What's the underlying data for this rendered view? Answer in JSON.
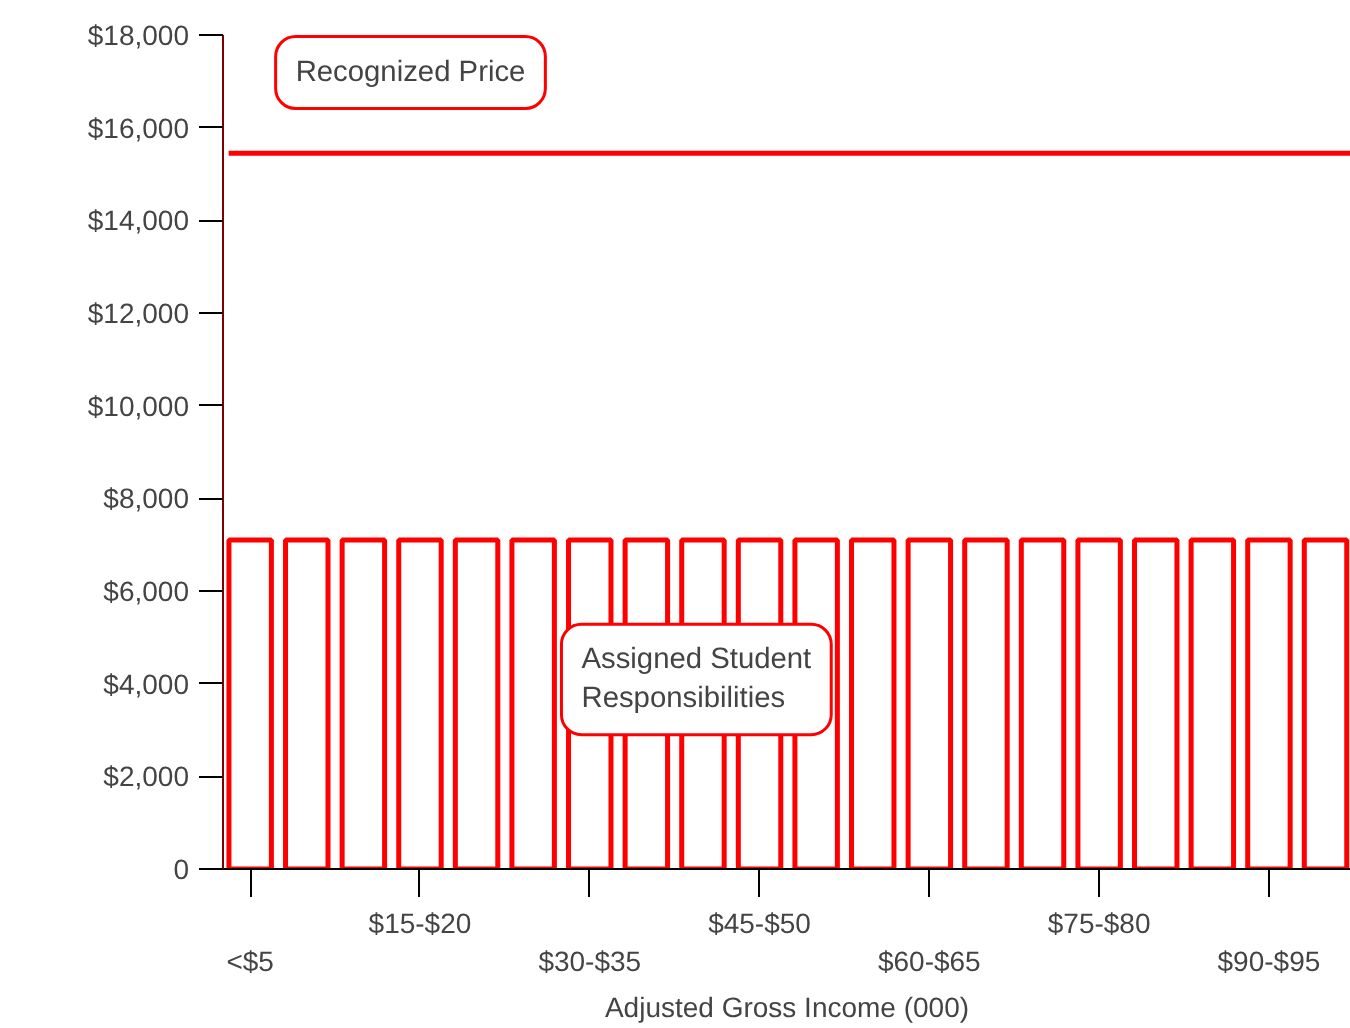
{
  "chart_data": {
    "type": "bar",
    "xlabel": "Adjusted Gross Income (000)",
    "categories": [
      "<$5",
      null,
      null,
      "$15-$20",
      null,
      null,
      "$30-$35",
      null,
      null,
      "$45-$50",
      null,
      null,
      "$60-$65",
      null,
      null,
      "$75-$80",
      null,
      null,
      "$90-$95",
      null
    ],
    "series": [
      {
        "color": "#ff0000",
        "values": [
          7100,
          7100,
          7100,
          7100,
          7100,
          7100,
          7100,
          7100,
          7100,
          7100,
          7100,
          7100,
          7100,
          7100,
          7100,
          7100,
          7100,
          7100,
          7100,
          7100
        ]
      }
    ],
    "ref_lines": [
      {
        "axis": "y",
        "value": 15450,
        "label": "Recognized Price",
        "color": "#ff0000"
      }
    ],
    "annotations": [
      "Assigned Student\nResponsibilities"
    ],
    "ylim": [
      0,
      18000
    ],
    "yticks": [
      0,
      {
        "value": 2000,
        "label": "$2,000"
      },
      {
        "value": 4000,
        "label": "$4,000"
      },
      {
        "value": 6000,
        "label": "$6,000"
      },
      {
        "value": 8000,
        "label": "$8,000"
      },
      {
        "value": 10000,
        "label": "$10,000"
      },
      {
        "value": 12000,
        "label": "$12,000"
      },
      {
        "value": 14000,
        "label": "$14,000"
      },
      {
        "value": 16000,
        "label": "$16,000"
      },
      {
        "value": 18000,
        "label": "$18,000"
      }
    ],
    "grid": false
  }
}
